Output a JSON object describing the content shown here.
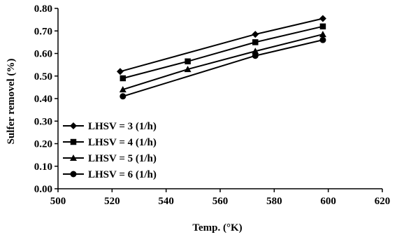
{
  "chart_data": {
    "type": "line",
    "title": "",
    "xlabel": "Temp. (°K)",
    "ylabel": "Sulfer removel (%)",
    "xlim": [
      500,
      620
    ],
    "ylim": [
      0.0,
      0.8
    ],
    "xticks": [
      "500",
      "520",
      "540",
      "560",
      "580",
      "600",
      "620"
    ],
    "yticks": [
      "0.00",
      "0.10",
      "0.20",
      "0.30",
      "0.40",
      "0.50",
      "0.60",
      "0.70",
      "0.80"
    ],
    "grid": false,
    "legend_position": "bottom-left",
    "series": [
      {
        "name": "LHSV = 3 (1/h)",
        "marker": "diamond",
        "x": [
          523,
          573,
          598
        ],
        "y": [
          0.52,
          0.685,
          0.755
        ]
      },
      {
        "name": "LHSV = 4 (1/h)",
        "marker": "square",
        "x": [
          524,
          548,
          573,
          598
        ],
        "y": [
          0.49,
          0.565,
          0.65,
          0.72
        ]
      },
      {
        "name": "LHSV = 5 (1/h)",
        "marker": "triangle",
        "x": [
          524,
          548,
          573,
          598
        ],
        "y": [
          0.44,
          0.53,
          0.61,
          0.685
        ]
      },
      {
        "name": "LHSV = 6 (1/h)",
        "marker": "circle",
        "x": [
          524,
          573,
          598
        ],
        "y": [
          0.41,
          0.59,
          0.66
        ]
      }
    ]
  }
}
